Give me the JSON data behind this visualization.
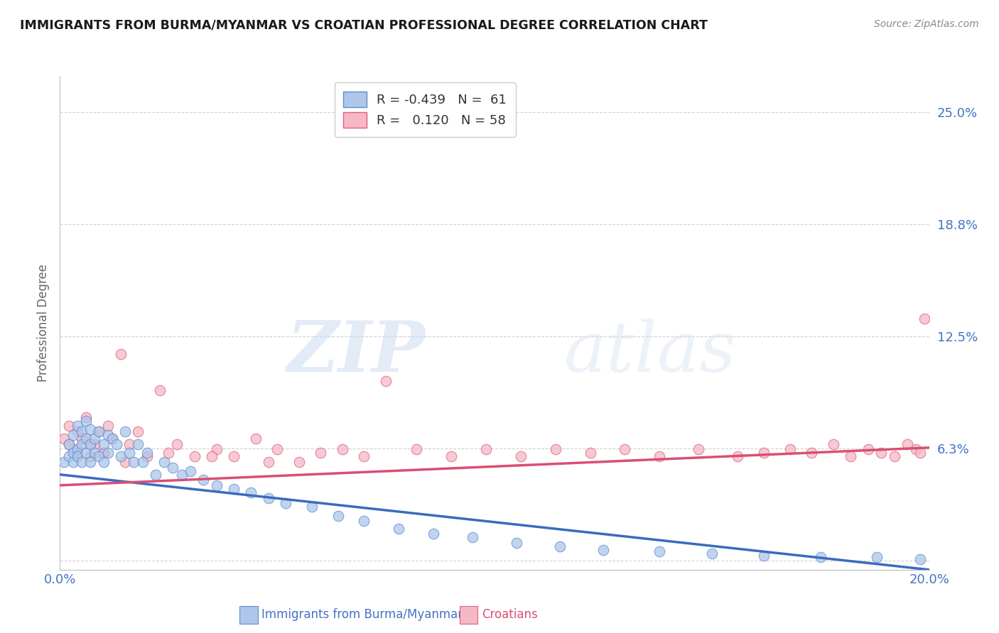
{
  "title": "IMMIGRANTS FROM BURMA/MYANMAR VS CROATIAN PROFESSIONAL DEGREE CORRELATION CHART",
  "source": "Source: ZipAtlas.com",
  "xlabel_blue": "Immigrants from Burma/Myanmar",
  "xlabel_pink": "Croatians",
  "ylabel": "Professional Degree",
  "xlim": [
    0.0,
    0.2
  ],
  "ylim": [
    -0.005,
    0.27
  ],
  "yticks": [
    0.0,
    0.0625,
    0.125,
    0.1875,
    0.25
  ],
  "ytick_labels": [
    "",
    "6.3%",
    "12.5%",
    "18.8%",
    "25.0%"
  ],
  "xticks": [
    0.0,
    0.2
  ],
  "xtick_labels": [
    "0.0%",
    "20.0%"
  ],
  "r_blue": -0.439,
  "n_blue": 61,
  "r_pink": 0.12,
  "n_pink": 58,
  "blue_fill": "#aec6e8",
  "pink_fill": "#f5b8c4",
  "blue_edge": "#5b8ed6",
  "pink_edge": "#e06080",
  "blue_line": "#3a6bbf",
  "pink_line": "#d94f72",
  "title_color": "#1a1a1a",
  "label_color": "#4472c4",
  "grid_color": "#d0d0d0",
  "background_color": "#ffffff",
  "watermark_zip": "ZIP",
  "watermark_atlas": "atlas",
  "blue_scatter_x": [
    0.001,
    0.002,
    0.002,
    0.003,
    0.003,
    0.003,
    0.004,
    0.004,
    0.004,
    0.005,
    0.005,
    0.005,
    0.006,
    0.006,
    0.006,
    0.007,
    0.007,
    0.007,
    0.008,
    0.008,
    0.009,
    0.009,
    0.01,
    0.01,
    0.011,
    0.011,
    0.012,
    0.013,
    0.014,
    0.015,
    0.016,
    0.017,
    0.018,
    0.019,
    0.02,
    0.022,
    0.024,
    0.026,
    0.028,
    0.03,
    0.033,
    0.036,
    0.04,
    0.044,
    0.048,
    0.052,
    0.058,
    0.064,
    0.07,
    0.078,
    0.086,
    0.095,
    0.105,
    0.115,
    0.125,
    0.138,
    0.15,
    0.162,
    0.175,
    0.188,
    0.198
  ],
  "blue_scatter_y": [
    0.055,
    0.065,
    0.058,
    0.06,
    0.07,
    0.055,
    0.062,
    0.075,
    0.058,
    0.065,
    0.072,
    0.055,
    0.068,
    0.06,
    0.078,
    0.065,
    0.055,
    0.073,
    0.06,
    0.068,
    0.072,
    0.058,
    0.065,
    0.055,
    0.07,
    0.06,
    0.068,
    0.065,
    0.058,
    0.072,
    0.06,
    0.055,
    0.065,
    0.055,
    0.06,
    0.048,
    0.055,
    0.052,
    0.048,
    0.05,
    0.045,
    0.042,
    0.04,
    0.038,
    0.035,
    0.032,
    0.03,
    0.025,
    0.022,
    0.018,
    0.015,
    0.013,
    0.01,
    0.008,
    0.006,
    0.005,
    0.004,
    0.003,
    0.002,
    0.002,
    0.001
  ],
  "pink_scatter_x": [
    0.001,
    0.002,
    0.003,
    0.004,
    0.005,
    0.006,
    0.007,
    0.008,
    0.009,
    0.01,
    0.011,
    0.012,
    0.014,
    0.016,
    0.018,
    0.02,
    0.023,
    0.027,
    0.031,
    0.036,
    0.04,
    0.045,
    0.05,
    0.055,
    0.06,
    0.065,
    0.07,
    0.075,
    0.082,
    0.09,
    0.098,
    0.106,
    0.114,
    0.122,
    0.13,
    0.138,
    0.147,
    0.156,
    0.162,
    0.168,
    0.173,
    0.178,
    0.182,
    0.186,
    0.189,
    0.192,
    0.195,
    0.197,
    0.198,
    0.199,
    0.002,
    0.004,
    0.007,
    0.01,
    0.015,
    0.025,
    0.035,
    0.048
  ],
  "pink_scatter_y": [
    0.068,
    0.075,
    0.062,
    0.072,
    0.068,
    0.08,
    0.058,
    0.065,
    0.072,
    0.06,
    0.075,
    0.068,
    0.115,
    0.065,
    0.072,
    0.058,
    0.095,
    0.065,
    0.058,
    0.062,
    0.058,
    0.068,
    0.062,
    0.055,
    0.06,
    0.062,
    0.058,
    0.1,
    0.062,
    0.058,
    0.062,
    0.058,
    0.062,
    0.06,
    0.062,
    0.058,
    0.062,
    0.058,
    0.06,
    0.062,
    0.06,
    0.065,
    0.058,
    0.062,
    0.06,
    0.058,
    0.065,
    0.062,
    0.06,
    0.135,
    0.065,
    0.06,
    0.065,
    0.06,
    0.055,
    0.06,
    0.058,
    0.055
  ],
  "blue_trend_x0": 0.0,
  "blue_trend_y0": 0.048,
  "blue_trend_x1": 0.2,
  "blue_trend_y1": -0.005,
  "pink_trend_x0": 0.0,
  "pink_trend_y0": 0.042,
  "pink_trend_x1": 0.2,
  "pink_trend_y1": 0.063
}
